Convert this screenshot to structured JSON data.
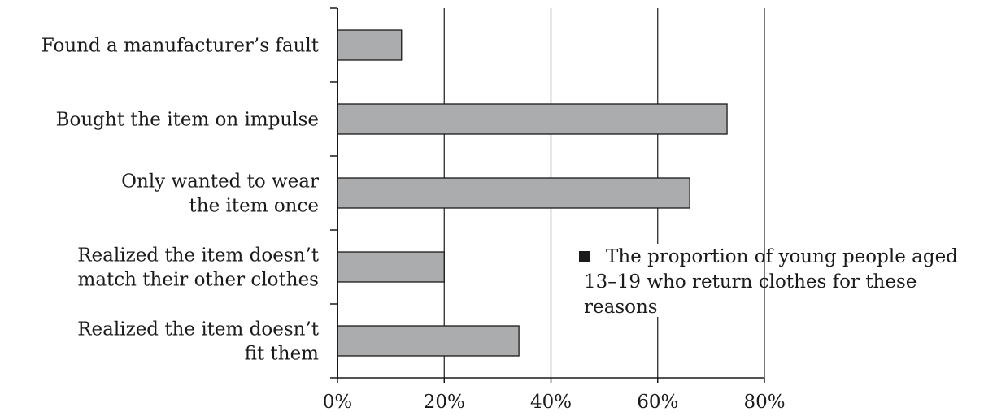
{
  "chart_data": {
    "type": "bar",
    "orientation": "horizontal",
    "categories": [
      [
        "Found a manufacturer’s fault"
      ],
      [
        "Bought the item on impulse"
      ],
      [
        "Only wanted to wear",
        "the item once"
      ],
      [
        "Realized the item doesn’t",
        "match their other clothes"
      ],
      [
        "Realized the item doesn’t",
        "fit them"
      ]
    ],
    "values": [
      12,
      73,
      66,
      20,
      34
    ],
    "xlim": [
      0,
      80
    ],
    "xticks": [
      0,
      20,
      40,
      60,
      80
    ],
    "xtick_labels": [
      "0%",
      "20%",
      "40%",
      "60%",
      "80%"
    ],
    "grid": "vertical",
    "bar_color": "#aaacad",
    "legend": {
      "position": "center-right",
      "marker_color": "#1a1a1a",
      "lines": [
        "The proportion of young people aged",
        "13–19 who return clothes for these",
        "reasons"
      ]
    }
  }
}
